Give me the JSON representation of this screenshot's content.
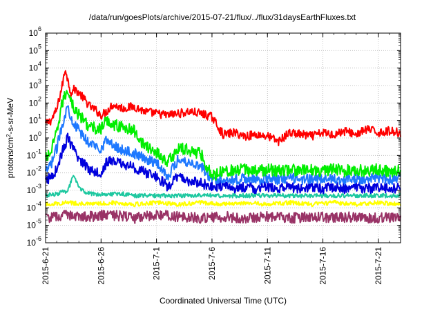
{
  "chart_data": {
    "type": "line",
    "title": "/data/run/goesPlots/archive/2015-07-21/flux/../flux/31daysEarthFluxes.txt",
    "xlabel": "Coordinated Universal Time (UTC)",
    "ylabel": {
      "main": "protons/cm",
      "sup": "2",
      "rest": "-s-sr-MeV"
    },
    "x_start": "2015-06-21",
    "x_end": "2015-07-23",
    "xlim_days": [
      0,
      32
    ],
    "yscale": "log",
    "ylim_exponents": [
      -6,
      6
    ],
    "grid": true,
    "x_ticks": [
      {
        "label": "2015-6-21",
        "day": 0
      },
      {
        "label": "2015-6-26",
        "day": 5
      },
      {
        "label": "2015-7-1",
        "day": 10
      },
      {
        "label": "2015-7-6",
        "day": 15
      },
      {
        "label": "2015-7-11",
        "day": 20
      },
      {
        "label": "2015-7-16",
        "day": 25
      },
      {
        "label": "2015-7-21",
        "day": 30
      }
    ],
    "y_ticks": [
      {
        "base": "10",
        "exp": "-6",
        "value": -6
      },
      {
        "base": "10",
        "exp": "-5",
        "value": -5
      },
      {
        "base": "10",
        "exp": "-4",
        "value": -4
      },
      {
        "base": "10",
        "exp": "-3",
        "value": -3
      },
      {
        "base": "10",
        "exp": "-2",
        "value": -2
      },
      {
        "base": "10",
        "exp": "-1",
        "value": -1
      },
      {
        "base": "10",
        "exp": "0",
        "value": 0
      },
      {
        "base": "10",
        "exp": "1",
        "value": 1
      },
      {
        "base": "10",
        "exp": "2",
        "value": 2
      },
      {
        "base": "10",
        "exp": "3",
        "value": 3
      },
      {
        "base": "10",
        "exp": "4",
        "value": 4
      },
      {
        "base": "10",
        "exp": "5",
        "value": 5
      },
      {
        "base": "10",
        "exp": "6",
        "value": 6
      }
    ],
    "series": [
      {
        "color": "#ff0000",
        "values_note": "log10 flux",
        "days": [
          0,
          0.5,
          1,
          1.5,
          1.8,
          2,
          2.3,
          2.6,
          3,
          3.5,
          4,
          4.5,
          5,
          5.5,
          6,
          7,
          8,
          9,
          10,
          11,
          12,
          13,
          14,
          15,
          16,
          17,
          18,
          19,
          20,
          21,
          22,
          23,
          24,
          25,
          26,
          27,
          28,
          29,
          30,
          31,
          32
        ],
        "log_flux": [
          0.8,
          1.0,
          1.6,
          3.0,
          4.0,
          3.3,
          2.6,
          2.8,
          2.6,
          2.2,
          1.8,
          1.6,
          1.3,
          1.5,
          1.9,
          1.7,
          1.8,
          1.5,
          1.4,
          1.3,
          1.4,
          1.5,
          1.4,
          1.2,
          0.2,
          0.3,
          0.1,
          0.2,
          0.1,
          -0.2,
          0.3,
          0.2,
          0.1,
          0.3,
          0.2,
          0.4,
          0.2,
          0.5,
          0.3,
          0.4,
          0.3
        ]
      },
      {
        "color": "#00ee00",
        "values_note": "log10 flux",
        "days": [
          0,
          0.5,
          1,
          1.5,
          2,
          2.3,
          2.6,
          3,
          3.5,
          4,
          5,
          5.5,
          6,
          7,
          8,
          9,
          10,
          11,
          12,
          13,
          14,
          15,
          16,
          17,
          18,
          19,
          20,
          21,
          22,
          23,
          24,
          25,
          26,
          27,
          28,
          29,
          30,
          31,
          32
        ],
        "log_flux": [
          -1.2,
          -0.8,
          0.3,
          2.0,
          2.8,
          2.2,
          1.6,
          1.3,
          1.0,
          0.6,
          0.5,
          1.0,
          0.8,
          0.6,
          0.4,
          -0.5,
          -0.8,
          -1.4,
          -0.6,
          -0.7,
          -0.9,
          -2.2,
          -1.8,
          -1.9,
          -1.8,
          -1.9,
          -1.8,
          -1.9,
          -1.8,
          -1.9,
          -1.8,
          -1.9,
          -1.8,
          -1.9,
          -1.8,
          -1.9,
          -1.8,
          -1.9,
          -1.8
        ]
      },
      {
        "color": "#1e78ff",
        "values_note": "log10 flux",
        "days": [
          0,
          0.5,
          1,
          1.5,
          2,
          2.3,
          2.6,
          3,
          3.5,
          4,
          5,
          5.5,
          6,
          7,
          8,
          9,
          10,
          11,
          12,
          13,
          14,
          15,
          16,
          17,
          18,
          19,
          20,
          21,
          22,
          23,
          24,
          25,
          26,
          27,
          28,
          29,
          30,
          31,
          32
        ],
        "log_flux": [
          -2.0,
          -1.5,
          -0.6,
          0.8,
          1.8,
          1.2,
          0.8,
          0.4,
          0.0,
          -0.3,
          -0.6,
          -0.1,
          -0.4,
          -0.7,
          -0.9,
          -1.2,
          -1.4,
          -2.2,
          -1.2,
          -1.4,
          -1.6,
          -2.4,
          -2.3,
          -2.4,
          -2.3,
          -2.4,
          -2.3,
          -2.4,
          -2.3,
          -2.4,
          -2.3,
          -2.4,
          -2.3,
          -2.4,
          -2.3,
          -2.4,
          -2.3,
          -2.4,
          -2.3
        ]
      },
      {
        "color": "#0000dd",
        "values_note": "log10 flux",
        "days": [
          0,
          0.5,
          1,
          1.5,
          2,
          2.3,
          2.6,
          3,
          3.5,
          4,
          5,
          5.5,
          6,
          7,
          8,
          9,
          10,
          11,
          12,
          13,
          14,
          15,
          16,
          17,
          18,
          19,
          20,
          21,
          22,
          23,
          24,
          25,
          26,
          27,
          28,
          29,
          30,
          31,
          32
        ],
        "log_flux": [
          -2.5,
          -2.2,
          -1.8,
          -0.8,
          0.0,
          -0.4,
          -0.8,
          -1.2,
          -1.5,
          -1.8,
          -2.0,
          -1.4,
          -1.3,
          -1.5,
          -1.7,
          -2.0,
          -2.2,
          -2.8,
          -2.2,
          -2.5,
          -2.6,
          -2.8,
          -2.7,
          -2.9,
          -2.8,
          -2.9,
          -2.8,
          -2.9,
          -2.8,
          -2.9,
          -2.8,
          -2.9,
          -2.8,
          -2.9,
          -2.8,
          -2.9,
          -2.8,
          -2.9,
          -2.8
        ]
      },
      {
        "color": "#1ec8a0",
        "values_note": "log10 flux",
        "days": [
          0,
          1,
          2,
          2.5,
          3,
          3.5,
          4,
          5,
          6,
          7,
          8,
          9,
          10,
          11,
          12,
          13,
          14,
          15,
          16,
          18,
          20,
          22,
          24,
          26,
          28,
          30,
          32
        ],
        "log_flux": [
          -3.3,
          -3.2,
          -3.0,
          -2.2,
          -2.8,
          -3.1,
          -3.2,
          -3.2,
          -3.2,
          -3.2,
          -3.3,
          -3.3,
          -3.3,
          -3.3,
          -3.3,
          -3.3,
          -3.3,
          -3.3,
          -3.3,
          -3.3,
          -3.3,
          -3.3,
          -3.3,
          -3.3,
          -3.3,
          -3.3,
          -3.3
        ]
      },
      {
        "color": "#ffff00",
        "values_note": "log10 flux",
        "days": [
          0,
          2,
          4,
          6,
          8,
          10,
          12,
          14,
          16,
          18,
          20,
          22,
          24,
          26,
          28,
          30,
          32
        ],
        "log_flux": [
          -3.8,
          -3.7,
          -3.8,
          -3.7,
          -3.8,
          -3.7,
          -3.8,
          -3.7,
          -3.8,
          -3.7,
          -3.8,
          -3.7,
          -3.8,
          -3.7,
          -3.8,
          -3.7,
          -3.8
        ]
      },
      {
        "color": "#993366",
        "values_note": "log10 flux",
        "days": [
          0,
          2,
          4,
          6,
          8,
          10,
          12,
          14,
          16,
          18,
          20,
          22,
          24,
          26,
          28,
          30,
          32
        ],
        "log_flux": [
          -4.6,
          -4.4,
          -4.5,
          -4.4,
          -4.6,
          -4.4,
          -4.5,
          -4.6,
          -4.5,
          -4.6,
          -4.5,
          -4.6,
          -4.5,
          -4.6,
          -4.5,
          -4.6,
          -4.5
        ]
      }
    ]
  }
}
